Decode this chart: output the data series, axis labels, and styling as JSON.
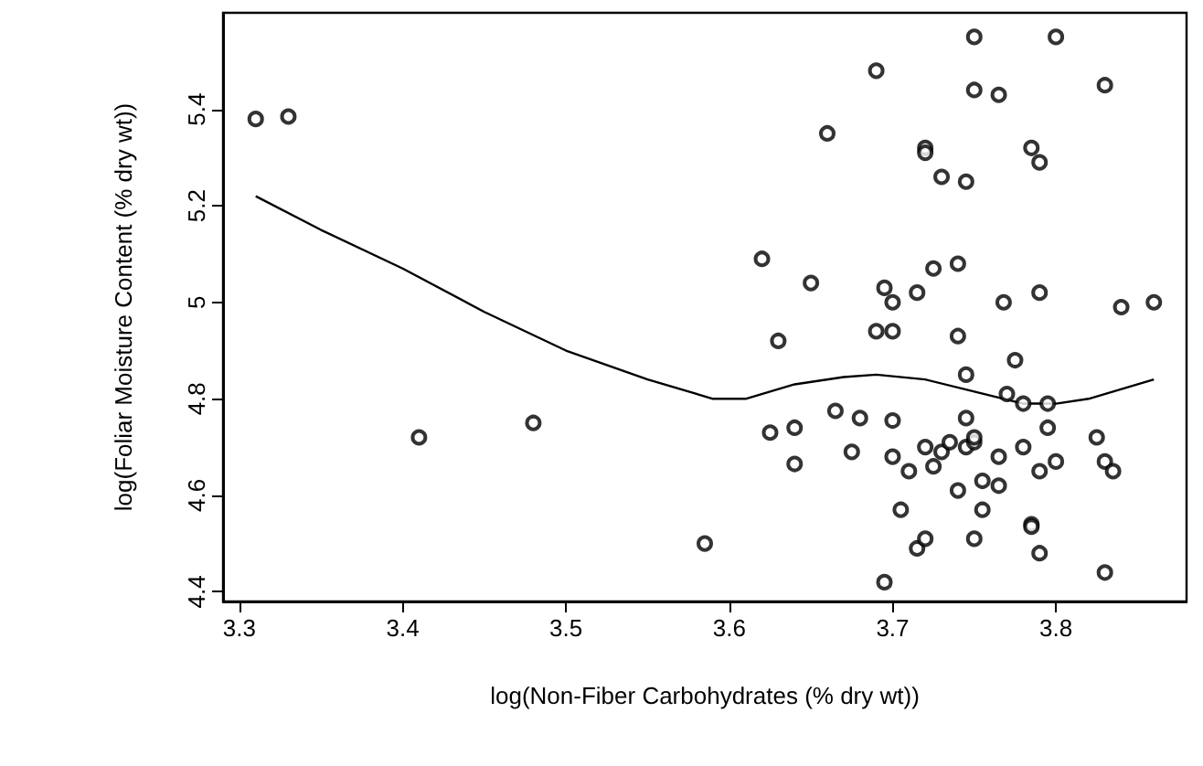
{
  "chart_data": {
    "type": "scatter",
    "xlabel": "log(Non-Fiber Carbohydrates (% dry wt))",
    "ylabel": "log(Foliar Moisture Content (% dry wt))",
    "xlim": [
      3.29,
      3.88
    ],
    "ylim": [
      4.38,
      5.6
    ],
    "xticks": [
      3.3,
      3.4,
      3.5,
      3.6,
      3.7,
      3.8
    ],
    "yticks": [
      4.4,
      4.6,
      4.8,
      5.0,
      5.2,
      5.4
    ],
    "grid": false,
    "series": [
      {
        "color": "#000000",
        "marker": "circle",
        "x": [
          3.31,
          3.33,
          3.41,
          3.48,
          3.585,
          3.62,
          3.625,
          3.63,
          3.64,
          3.64,
          3.65,
          3.66,
          3.665,
          3.675,
          3.68,
          3.69,
          3.69,
          3.695,
          3.695,
          3.7,
          3.7,
          3.7,
          3.7,
          3.705,
          3.71,
          3.715,
          3.715,
          3.72,
          3.72,
          3.72,
          3.725,
          3.73,
          3.72,
          3.725,
          3.73,
          3.735,
          3.74,
          3.74,
          3.74,
          3.745,
          3.745,
          3.745,
          3.745,
          3.75,
          3.75,
          3.75,
          3.75,
          3.75,
          3.755,
          3.755,
          3.765,
          3.765,
          3.765,
          3.768,
          3.77,
          3.775,
          3.78,
          3.78,
          3.785,
          3.785,
          3.785,
          3.79,
          3.79,
          3.79,
          3.79,
          3.795,
          3.795,
          3.8,
          3.8,
          3.825,
          3.83,
          3.83,
          3.83,
          3.835,
          3.84,
          3.86
        ],
        "values": [
          5.38,
          5.385,
          4.72,
          4.75,
          4.5,
          5.09,
          4.73,
          4.92,
          4.74,
          4.665,
          5.04,
          5.35,
          4.775,
          4.69,
          4.76,
          5.48,
          4.94,
          5.03,
          4.42,
          4.94,
          5.0,
          4.755,
          4.68,
          4.57,
          4.65,
          5.02,
          4.49,
          4.51,
          5.32,
          5.31,
          5.07,
          5.26,
          4.7,
          4.66,
          4.69,
          4.71,
          4.61,
          4.93,
          5.08,
          5.25,
          4.85,
          4.76,
          4.7,
          4.71,
          4.72,
          5.55,
          5.44,
          4.51,
          4.57,
          4.63,
          5.43,
          4.62,
          4.68,
          5.0,
          4.81,
          4.88,
          4.79,
          4.7,
          5.32,
          4.54,
          4.535,
          5.29,
          4.65,
          4.48,
          5.02,
          4.79,
          4.74,
          5.55,
          4.67,
          4.72,
          5.45,
          4.44,
          4.67,
          4.65,
          4.99,
          5.0
        ]
      },
      {
        "type": "line",
        "color": "#000000",
        "line_style": "solid",
        "x": [
          3.31,
          3.35,
          3.4,
          3.45,
          3.5,
          3.55,
          3.59,
          3.61,
          3.64,
          3.67,
          3.69,
          3.72,
          3.75,
          3.78,
          3.8,
          3.82,
          3.86
        ],
        "values": [
          5.22,
          5.15,
          5.07,
          4.98,
          4.9,
          4.84,
          4.8,
          4.8,
          4.83,
          4.845,
          4.85,
          4.84,
          4.815,
          4.79,
          4.79,
          4.8,
          4.84
        ]
      }
    ]
  }
}
